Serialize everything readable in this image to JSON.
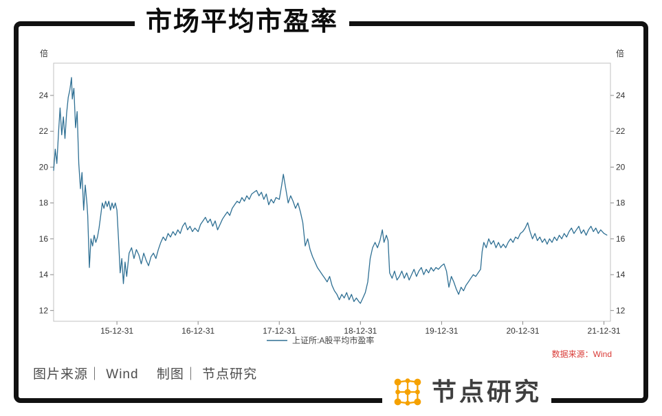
{
  "header": {
    "title": "市场平均市盈率"
  },
  "colors": {
    "accent_red": "#D93A36",
    "series_blue": "#2E6F93",
    "brand_orange": "#F5A100",
    "frame_black": "#111111"
  },
  "chart_data": {
    "type": "line",
    "title": "市场平均市盈率",
    "unit_label": "倍",
    "ylim": [
      11.4,
      25.8
    ],
    "xlim": [
      2015.22,
      2022.08
    ],
    "y_ticks": [
      12,
      14,
      16,
      18,
      20,
      22,
      24
    ],
    "x_ticks": [
      {
        "pos": 2016,
        "label": "15-12-31"
      },
      {
        "pos": 2017,
        "label": "16-12-31"
      },
      {
        "pos": 2018,
        "label": "17-12-31"
      },
      {
        "pos": 2019,
        "label": "18-12-31"
      },
      {
        "pos": 2020,
        "label": "19-12-31"
      },
      {
        "pos": 2021,
        "label": "20-12-31"
      },
      {
        "pos": 2022,
        "label": "21-12-31"
      }
    ],
    "grid": false,
    "legend_position": "bottom-center",
    "legend": [
      {
        "name": "上证所:A股平均市盈率",
        "color": "#2E6F93"
      }
    ],
    "series": [
      {
        "name": "上证所:A股平均市盈率",
        "color": "#2E6F93",
        "points": [
          [
            2015.22,
            19.8
          ],
          [
            2015.24,
            21.0
          ],
          [
            2015.26,
            20.2
          ],
          [
            2015.28,
            21.9
          ],
          [
            2015.3,
            23.3
          ],
          [
            2015.32,
            21.8
          ],
          [
            2015.34,
            22.8
          ],
          [
            2015.36,
            21.6
          ],
          [
            2015.38,
            23.0
          ],
          [
            2015.4,
            23.9
          ],
          [
            2015.42,
            24.3
          ],
          [
            2015.44,
            25.0
          ],
          [
            2015.45,
            23.8
          ],
          [
            2015.47,
            24.4
          ],
          [
            2015.49,
            22.2
          ],
          [
            2015.51,
            23.1
          ],
          [
            2015.53,
            20.2
          ],
          [
            2015.55,
            18.8
          ],
          [
            2015.57,
            19.7
          ],
          [
            2015.59,
            17.6
          ],
          [
            2015.61,
            19.0
          ],
          [
            2015.63,
            18.0
          ],
          [
            2015.64,
            17.3
          ],
          [
            2015.66,
            14.4
          ],
          [
            2015.68,
            16.0
          ],
          [
            2015.7,
            15.6
          ],
          [
            2015.72,
            16.2
          ],
          [
            2015.74,
            15.8
          ],
          [
            2015.76,
            16.1
          ],
          [
            2015.78,
            16.6
          ],
          [
            2015.8,
            17.3
          ],
          [
            2015.82,
            18.0
          ],
          [
            2015.84,
            17.7
          ],
          [
            2015.86,
            18.1
          ],
          [
            2015.88,
            17.8
          ],
          [
            2015.9,
            18.1
          ],
          [
            2015.92,
            17.6
          ],
          [
            2015.94,
            18.0
          ],
          [
            2015.96,
            17.7
          ],
          [
            2015.98,
            18.0
          ],
          [
            2016.0,
            17.6
          ],
          [
            2016.02,
            15.9
          ],
          [
            2016.04,
            14.1
          ],
          [
            2016.06,
            14.9
          ],
          [
            2016.08,
            13.5
          ],
          [
            2016.1,
            14.7
          ],
          [
            2016.12,
            13.9
          ],
          [
            2016.15,
            15.2
          ],
          [
            2016.18,
            15.5
          ],
          [
            2016.21,
            14.9
          ],
          [
            2016.24,
            15.4
          ],
          [
            2016.27,
            15.1
          ],
          [
            2016.3,
            14.6
          ],
          [
            2016.33,
            15.2
          ],
          [
            2016.36,
            14.8
          ],
          [
            2016.39,
            14.5
          ],
          [
            2016.42,
            15.0
          ],
          [
            2016.45,
            15.2
          ],
          [
            2016.48,
            14.9
          ],
          [
            2016.51,
            15.4
          ],
          [
            2016.54,
            15.8
          ],
          [
            2016.57,
            16.1
          ],
          [
            2016.6,
            15.9
          ],
          [
            2016.63,
            16.3
          ],
          [
            2016.66,
            16.1
          ],
          [
            2016.69,
            16.4
          ],
          [
            2016.72,
            16.2
          ],
          [
            2016.75,
            16.5
          ],
          [
            2016.78,
            16.3
          ],
          [
            2016.81,
            16.7
          ],
          [
            2016.84,
            16.9
          ],
          [
            2016.87,
            16.5
          ],
          [
            2016.9,
            16.7
          ],
          [
            2016.93,
            16.4
          ],
          [
            2016.96,
            16.6
          ],
          [
            2017.0,
            16.4
          ],
          [
            2017.03,
            16.8
          ],
          [
            2017.06,
            17.0
          ],
          [
            2017.09,
            17.2
          ],
          [
            2017.12,
            16.9
          ],
          [
            2017.15,
            17.1
          ],
          [
            2017.18,
            16.7
          ],
          [
            2017.21,
            17.0
          ],
          [
            2017.24,
            16.5
          ],
          [
            2017.27,
            16.8
          ],
          [
            2017.3,
            17.1
          ],
          [
            2017.33,
            17.3
          ],
          [
            2017.36,
            17.5
          ],
          [
            2017.39,
            17.3
          ],
          [
            2017.42,
            17.7
          ],
          [
            2017.45,
            17.9
          ],
          [
            2017.48,
            18.1
          ],
          [
            2017.51,
            18.0
          ],
          [
            2017.54,
            18.3
          ],
          [
            2017.57,
            18.1
          ],
          [
            2017.6,
            18.4
          ],
          [
            2017.63,
            18.2
          ],
          [
            2017.66,
            18.5
          ],
          [
            2017.69,
            18.6
          ],
          [
            2017.72,
            18.7
          ],
          [
            2017.75,
            18.4
          ],
          [
            2017.78,
            18.6
          ],
          [
            2017.81,
            18.2
          ],
          [
            2017.84,
            18.5
          ],
          [
            2017.87,
            17.9
          ],
          [
            2017.9,
            18.2
          ],
          [
            2017.93,
            18.0
          ],
          [
            2017.96,
            18.3
          ],
          [
            2018.0,
            18.2
          ],
          [
            2018.03,
            19.0
          ],
          [
            2018.05,
            19.6
          ],
          [
            2018.08,
            18.8
          ],
          [
            2018.11,
            18.0
          ],
          [
            2018.14,
            18.4
          ],
          [
            2018.17,
            18.1
          ],
          [
            2018.2,
            17.7
          ],
          [
            2018.23,
            18.0
          ],
          [
            2018.26,
            17.5
          ],
          [
            2018.29,
            16.9
          ],
          [
            2018.32,
            15.6
          ],
          [
            2018.35,
            16.0
          ],
          [
            2018.38,
            15.4
          ],
          [
            2018.41,
            15.0
          ],
          [
            2018.44,
            14.7
          ],
          [
            2018.47,
            14.4
          ],
          [
            2018.5,
            14.2
          ],
          [
            2018.53,
            14.0
          ],
          [
            2018.56,
            13.8
          ],
          [
            2018.59,
            13.6
          ],
          [
            2018.62,
            13.9
          ],
          [
            2018.65,
            13.4
          ],
          [
            2018.68,
            13.1
          ],
          [
            2018.71,
            12.9
          ],
          [
            2018.74,
            12.6
          ],
          [
            2018.77,
            12.9
          ],
          [
            2018.8,
            12.7
          ],
          [
            2018.83,
            13.0
          ],
          [
            2018.86,
            12.6
          ],
          [
            2018.89,
            12.9
          ],
          [
            2018.92,
            12.5
          ],
          [
            2018.95,
            12.7
          ],
          [
            2018.98,
            12.5
          ],
          [
            2019.0,
            12.4
          ],
          [
            2019.03,
            12.7
          ],
          [
            2019.06,
            13.0
          ],
          [
            2019.09,
            13.6
          ],
          [
            2019.12,
            14.9
          ],
          [
            2019.15,
            15.5
          ],
          [
            2019.18,
            15.8
          ],
          [
            2019.21,
            15.5
          ],
          [
            2019.24,
            15.9
          ],
          [
            2019.27,
            16.5
          ],
          [
            2019.29,
            15.8
          ],
          [
            2019.32,
            16.2
          ],
          [
            2019.34,
            15.9
          ],
          [
            2019.36,
            14.1
          ],
          [
            2019.39,
            13.8
          ],
          [
            2019.42,
            14.2
          ],
          [
            2019.45,
            13.7
          ],
          [
            2019.48,
            13.9
          ],
          [
            2019.51,
            14.2
          ],
          [
            2019.54,
            13.8
          ],
          [
            2019.57,
            14.1
          ],
          [
            2019.6,
            13.7
          ],
          [
            2019.63,
            14.0
          ],
          [
            2019.66,
            14.3
          ],
          [
            2019.69,
            13.9
          ],
          [
            2019.72,
            14.2
          ],
          [
            2019.75,
            14.4
          ],
          [
            2019.78,
            14.0
          ],
          [
            2019.81,
            14.3
          ],
          [
            2019.84,
            14.1
          ],
          [
            2019.87,
            14.4
          ],
          [
            2019.9,
            14.2
          ],
          [
            2019.93,
            14.4
          ],
          [
            2019.96,
            14.3
          ],
          [
            2020.0,
            14.5
          ],
          [
            2020.03,
            14.6
          ],
          [
            2020.06,
            14.2
          ],
          [
            2020.09,
            13.3
          ],
          [
            2020.12,
            13.9
          ],
          [
            2020.15,
            13.6
          ],
          [
            2020.18,
            13.2
          ],
          [
            2020.21,
            12.9
          ],
          [
            2020.24,
            13.3
          ],
          [
            2020.27,
            13.1
          ],
          [
            2020.3,
            13.4
          ],
          [
            2020.33,
            13.6
          ],
          [
            2020.36,
            13.8
          ],
          [
            2020.39,
            14.0
          ],
          [
            2020.42,
            13.9
          ],
          [
            2020.45,
            14.1
          ],
          [
            2020.48,
            14.3
          ],
          [
            2020.5,
            15.3
          ],
          [
            2020.52,
            15.8
          ],
          [
            2020.55,
            15.5
          ],
          [
            2020.58,
            16.0
          ],
          [
            2020.61,
            15.7
          ],
          [
            2020.64,
            15.9
          ],
          [
            2020.67,
            15.5
          ],
          [
            2020.7,
            15.8
          ],
          [
            2020.73,
            15.5
          ],
          [
            2020.76,
            15.7
          ],
          [
            2020.79,
            15.5
          ],
          [
            2020.82,
            15.8
          ],
          [
            2020.85,
            16.0
          ],
          [
            2020.88,
            15.8
          ],
          [
            2020.91,
            16.1
          ],
          [
            2020.94,
            16.0
          ],
          [
            2020.97,
            16.3
          ],
          [
            2021.0,
            16.4
          ],
          [
            2021.03,
            16.6
          ],
          [
            2021.06,
            16.9
          ],
          [
            2021.09,
            16.4
          ],
          [
            2021.12,
            16.0
          ],
          [
            2021.15,
            16.3
          ],
          [
            2021.18,
            15.9
          ],
          [
            2021.21,
            16.1
          ],
          [
            2021.24,
            15.8
          ],
          [
            2021.27,
            16.0
          ],
          [
            2021.3,
            15.7
          ],
          [
            2021.33,
            16.0
          ],
          [
            2021.36,
            15.8
          ],
          [
            2021.39,
            16.1
          ],
          [
            2021.42,
            15.9
          ],
          [
            2021.45,
            16.2
          ],
          [
            2021.48,
            16.0
          ],
          [
            2021.51,
            16.3
          ],
          [
            2021.54,
            16.1
          ],
          [
            2021.57,
            16.4
          ],
          [
            2021.6,
            16.6
          ],
          [
            2021.63,
            16.3
          ],
          [
            2021.66,
            16.5
          ],
          [
            2021.69,
            16.7
          ],
          [
            2021.72,
            16.3
          ],
          [
            2021.75,
            16.5
          ],
          [
            2021.78,
            16.2
          ],
          [
            2021.81,
            16.5
          ],
          [
            2021.84,
            16.7
          ],
          [
            2021.87,
            16.4
          ],
          [
            2021.9,
            16.6
          ],
          [
            2021.93,
            16.3
          ],
          [
            2021.96,
            16.5
          ],
          [
            2022.0,
            16.3
          ],
          [
            2022.04,
            16.2
          ]
        ]
      }
    ]
  },
  "footer": {
    "source_note": "数据来源：Wind",
    "credit": "图片来源｜ Wind　 制图｜ 节点研究",
    "logo_text": "节点研究"
  }
}
